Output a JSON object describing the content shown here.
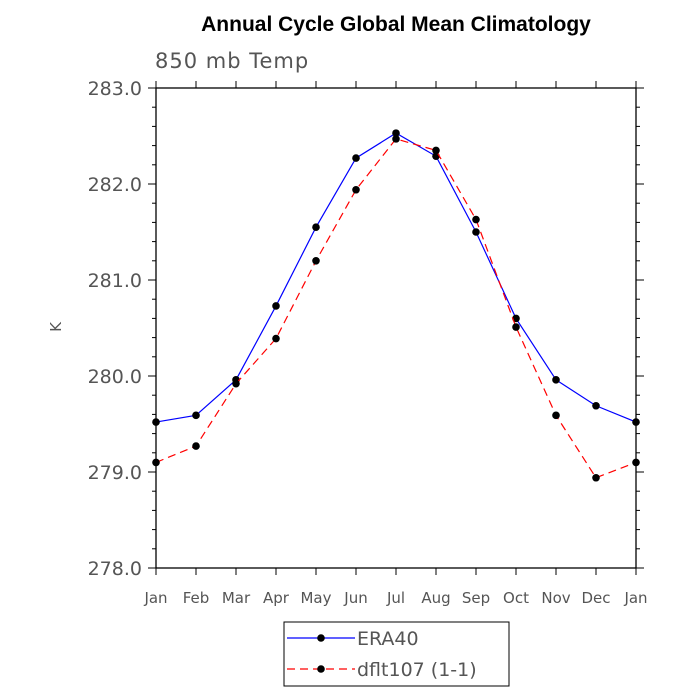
{
  "chart_data": {
    "type": "line",
    "title": "Annual Cycle Global Mean Climatology",
    "subtitle": "850 mb Temp",
    "xlabel": "",
    "ylabel": "K",
    "categories": [
      "Jan",
      "Feb",
      "Mar",
      "Apr",
      "May",
      "Jun",
      "Jul",
      "Aug",
      "Sep",
      "Oct",
      "Nov",
      "Dec",
      "Jan"
    ],
    "ylim": [
      278.0,
      283.0
    ],
    "yticks": [
      "278.0",
      "279.0",
      "280.0",
      "281.0",
      "282.0",
      "283.0"
    ],
    "grid": false,
    "legend_position": "bottom-center",
    "series": [
      {
        "name": "ERA40",
        "color": "#0000ff",
        "line_style": "solid",
        "values": [
          279.52,
          279.59,
          279.96,
          280.73,
          281.55,
          282.27,
          282.53,
          282.29,
          281.5,
          280.6,
          279.96,
          279.69,
          279.52
        ]
      },
      {
        "name": "dflt107 (1-1)",
        "color": "#ff0000",
        "line_style": "dashed",
        "values": [
          279.1,
          279.27,
          279.92,
          280.39,
          281.2,
          281.94,
          282.47,
          282.35,
          281.63,
          280.51,
          279.59,
          278.94,
          279.1
        ]
      }
    ]
  }
}
